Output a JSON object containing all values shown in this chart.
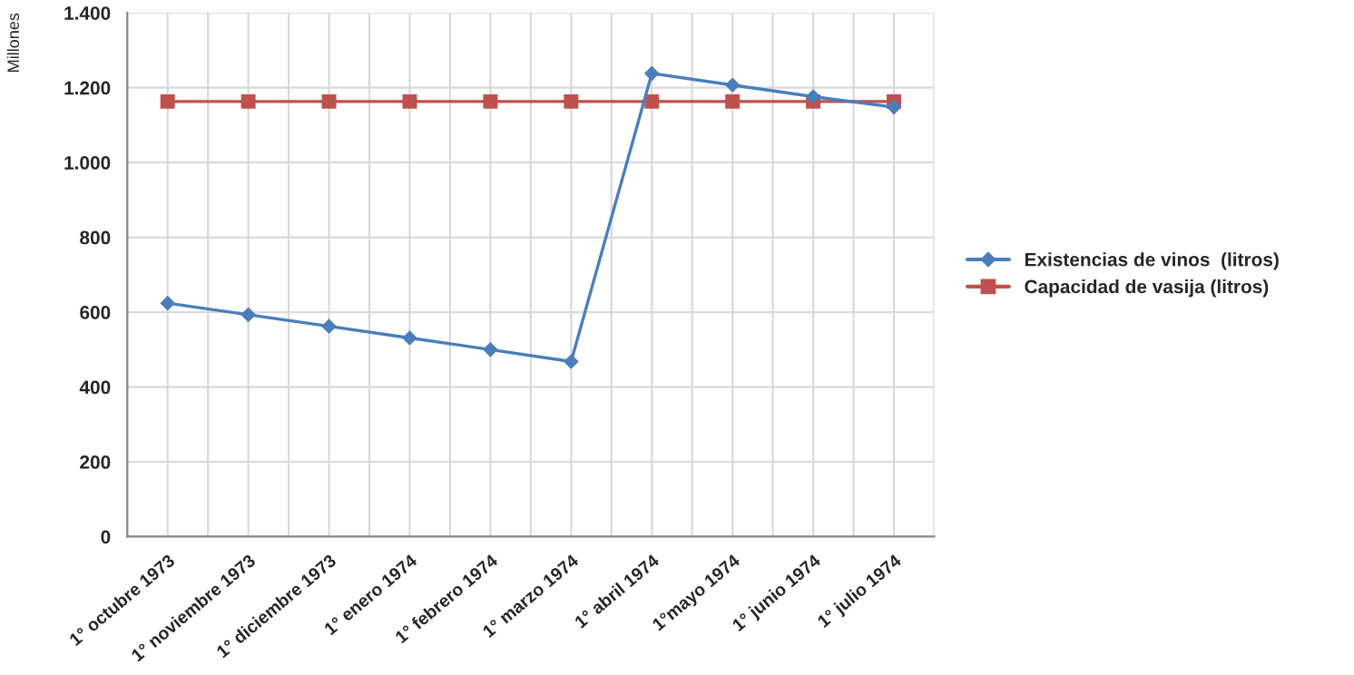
{
  "chart_data": {
    "type": "line",
    "ylabel": "Millones",
    "categories": [
      "1° octubre 1973",
      "1° noviembre 1973",
      "1° diciembre 1973",
      "1° enero 1974",
      "1° febrero 1974",
      "1° marzo 1974",
      "1° abril 1974",
      "1°mayo 1974",
      "1° junio 1974",
      "1° julio 1974"
    ],
    "series": [
      {
        "name": "Existencias de vinos  (litros)",
        "color": "#4a7ebb",
        "marker": "diamond",
        "values": [
          624,
          593,
          562,
          531,
          500,
          468,
          1238,
          1207,
          1176,
          1148
        ]
      },
      {
        "name": "Capacidad de vasija (litros)",
        "color": "#c0504d",
        "marker": "square",
        "values": [
          1163,
          1163,
          1163,
          1163,
          1163,
          1163,
          1163,
          1163,
          1163,
          1163
        ]
      }
    ],
    "ylim": [
      0,
      1400
    ],
    "yticks": [
      0,
      200,
      400,
      600,
      800,
      {
        "value": 1000,
        "label": "1.000"
      },
      {
        "value": 1200,
        "label": "1.200"
      },
      {
        "value": 1400,
        "label": "1.400"
      }
    ],
    "grid": true,
    "legend": "right",
    "line_style": "solid"
  }
}
